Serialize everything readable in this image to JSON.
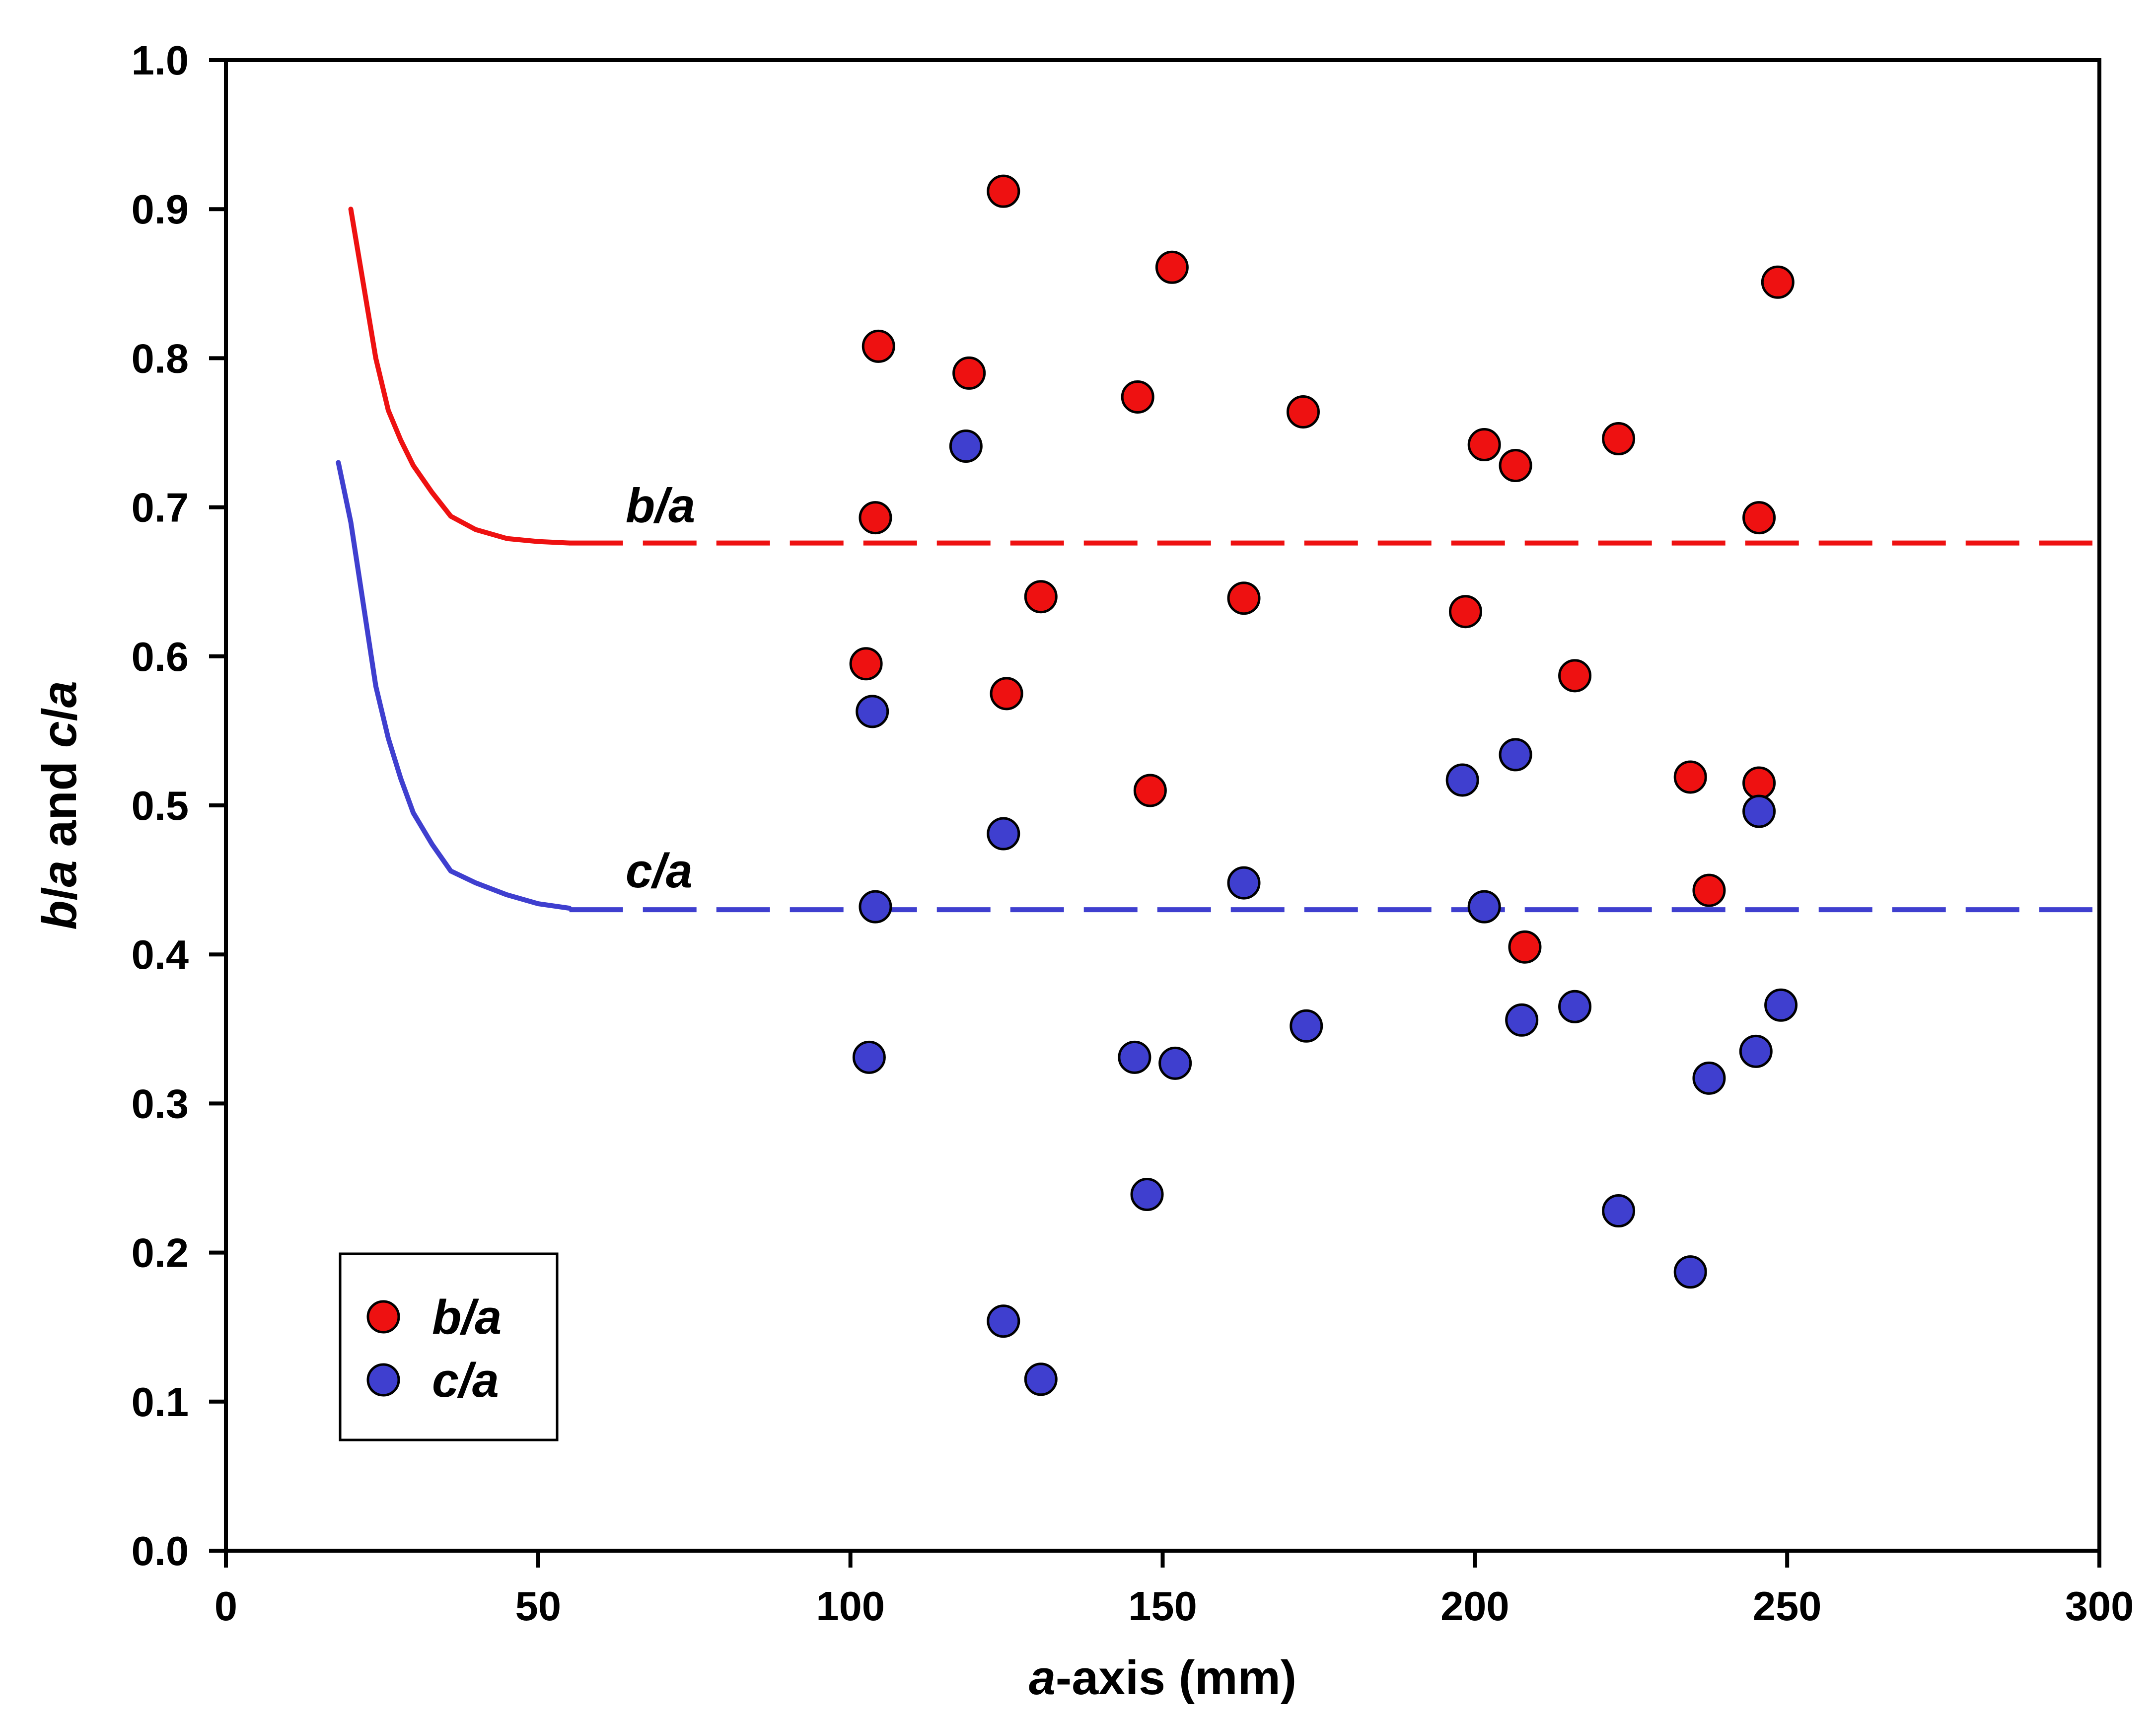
{
  "chart_data": {
    "type": "scatter",
    "title": "",
    "xlabel_parts": [
      "a",
      "-axis (mm)"
    ],
    "ylabel_parts": [
      "b",
      "/",
      "a",
      " and ",
      "c",
      "/",
      "a"
    ],
    "xlim": [
      0,
      300
    ],
    "ylim": [
      0.0,
      1.0
    ],
    "x_ticks": [
      "0",
      "50",
      "100",
      "150",
      "200",
      "250",
      "300"
    ],
    "y_ticks": [
      "0.0",
      "0.1",
      "0.2",
      "0.3",
      "0.4",
      "0.5",
      "0.6",
      "0.7",
      "0.8",
      "0.9",
      "1.0"
    ],
    "grid": false,
    "legend_position": "bottom-left",
    "series": [
      {
        "name": "b/a",
        "name_parts": [
          "b",
          "/",
          "a"
        ],
        "color": "#ee1111",
        "points": [
          [
            102.5,
            0.595
          ],
          [
            104,
            0.693
          ],
          [
            104.5,
            0.808
          ],
          [
            119,
            0.79
          ],
          [
            124.5,
            0.912
          ],
          [
            125,
            0.575
          ],
          [
            130.5,
            0.64
          ],
          [
            146,
            0.774
          ],
          [
            148,
            0.51
          ],
          [
            151.5,
            0.861
          ],
          [
            163,
            0.639
          ],
          [
            172.5,
            0.764
          ],
          [
            198.5,
            0.63
          ],
          [
            201.5,
            0.742
          ],
          [
            206.5,
            0.728
          ],
          [
            208,
            0.405
          ],
          [
            216,
            0.587
          ],
          [
            223,
            0.746
          ],
          [
            234.5,
            0.519
          ],
          [
            237.5,
            0.443
          ],
          [
            245.5,
            0.693
          ],
          [
            245.5,
            0.515
          ],
          [
            248.5,
            0.851
          ]
        ]
      },
      {
        "name": "c/a",
        "name_parts": [
          "c",
          "/",
          "a"
        ],
        "color": "#3f3fcf",
        "points": [
          [
            103,
            0.331
          ],
          [
            103.5,
            0.563
          ],
          [
            104,
            0.432
          ],
          [
            118.5,
            0.741
          ],
          [
            124.5,
            0.481
          ],
          [
            124.5,
            0.154
          ],
          [
            130.5,
            0.115
          ],
          [
            145.5,
            0.331
          ],
          [
            147.5,
            0.239
          ],
          [
            152,
            0.327
          ],
          [
            163,
            0.448
          ],
          [
            173,
            0.352
          ],
          [
            198,
            0.517
          ],
          [
            201.5,
            0.432
          ],
          [
            206.5,
            0.534
          ],
          [
            207.5,
            0.356
          ],
          [
            216,
            0.365
          ],
          [
            223,
            0.228
          ],
          [
            234.5,
            0.187
          ],
          [
            237.5,
            0.317
          ],
          [
            245,
            0.335
          ],
          [
            245.5,
            0.496
          ],
          [
            249,
            0.366
          ]
        ]
      }
    ],
    "curves": [
      {
        "name": "b/a",
        "label_parts": [
          "b",
          "/",
          "a"
        ],
        "label_at": [
          64,
          0.69
        ],
        "color": "#ee1111",
        "solid": [
          [
            20,
            0.9
          ],
          [
            22,
            0.85
          ],
          [
            24,
            0.8
          ],
          [
            26,
            0.765
          ],
          [
            28,
            0.745
          ],
          [
            30,
            0.728
          ],
          [
            33,
            0.71
          ],
          [
            36,
            0.694
          ],
          [
            40,
            0.685
          ],
          [
            45,
            0.679
          ],
          [
            50,
            0.677
          ],
          [
            55,
            0.676
          ]
        ],
        "dashed_from": 55,
        "dashed_to": 300,
        "asymptote": 0.676
      },
      {
        "name": "c/a",
        "label_parts": [
          "c",
          "/",
          "a"
        ],
        "label_at": [
          64,
          0.445
        ],
        "color": "#3f3fcf",
        "solid": [
          [
            18,
            0.73
          ],
          [
            20,
            0.69
          ],
          [
            22,
            0.635
          ],
          [
            24,
            0.58
          ],
          [
            26,
            0.545
          ],
          [
            28,
            0.518
          ],
          [
            30,
            0.495
          ],
          [
            33,
            0.474
          ],
          [
            36,
            0.456
          ],
          [
            40,
            0.448
          ],
          [
            45,
            0.44
          ],
          [
            50,
            0.434
          ],
          [
            55,
            0.431
          ]
        ],
        "dashed_from": 55,
        "dashed_to": 300,
        "asymptote": 0.43
      }
    ]
  }
}
